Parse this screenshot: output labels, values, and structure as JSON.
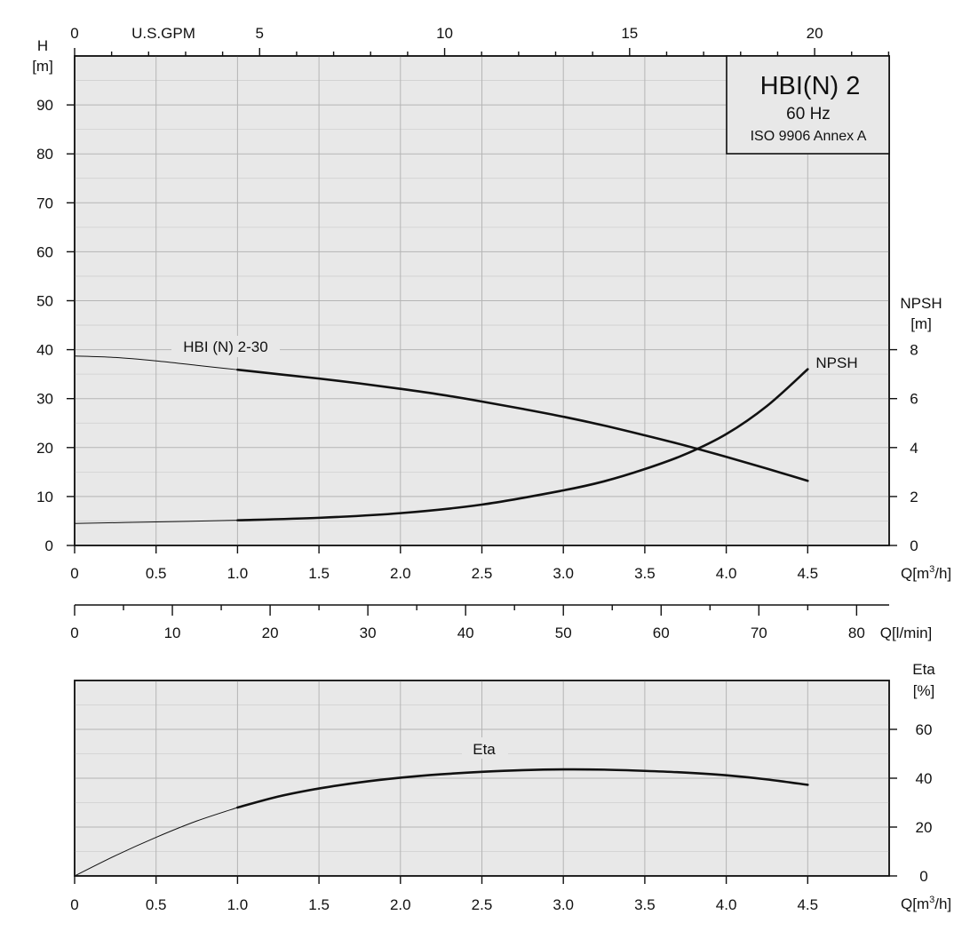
{
  "chart_data": [
    {
      "type": "line",
      "name": "performance",
      "title_box": {
        "line1": "HBI(N) 2",
        "line2": "60 Hz",
        "line3": "ISO 9906 Annex A"
      },
      "x_axis": {
        "label": "Q[m³/h]",
        "label_base": "Q[m",
        "label_sup": "3",
        "label_tail": "/h]",
        "range": [
          0,
          5.0
        ],
        "ticks": [
          "0",
          "0.5",
          "1.0",
          "1.5",
          "2.0",
          "2.5",
          "3.0",
          "3.5",
          "4.0",
          "4.5"
        ]
      },
      "top_axis": {
        "label": "U.S.GPM",
        "ticks": [
          "0",
          "5",
          "10",
          "15",
          "20"
        ],
        "tick_values": [
          0,
          5,
          10,
          15,
          20
        ]
      },
      "y_left": {
        "label_line1": "H",
        "label_line2": "[m]",
        "range": [
          0,
          100
        ],
        "ticks": [
          "0",
          "10",
          "20",
          "30",
          "40",
          "50",
          "60",
          "70",
          "80",
          "90"
        ]
      },
      "y_right": {
        "label_line1": "NPSH",
        "label_line2": "[m]",
        "range": [
          0,
          20
        ],
        "ticks": [
          "0",
          "2",
          "4",
          "6",
          "8"
        ]
      },
      "series": [
        {
          "name": "HBI (N) 2-30",
          "axis": "left",
          "x": [
            0,
            0.25,
            0.5,
            0.75,
            1.0,
            1.25,
            1.5,
            1.75,
            2.0,
            2.25,
            2.5,
            2.75,
            3.0,
            3.25,
            3.5,
            3.75,
            4.0,
            4.25,
            4.5
          ],
          "y": [
            38.7,
            38.4,
            37.7,
            36.8,
            35.9,
            35.0,
            34.1,
            33.1,
            32.0,
            30.8,
            29.4,
            27.9,
            26.3,
            24.5,
            22.5,
            20.4,
            18.1,
            15.7,
            13.2
          ]
        },
        {
          "name": "NPSH",
          "axis": "right",
          "x": [
            0,
            0.5,
            1.0,
            1.5,
            2.0,
            2.5,
            3.0,
            3.25,
            3.5,
            3.75,
            4.0,
            4.25,
            4.5
          ],
          "y": [
            0.9,
            0.96,
            1.03,
            1.13,
            1.32,
            1.67,
            2.25,
            2.62,
            3.12,
            3.73,
            4.55,
            5.7,
            7.2
          ]
        }
      ]
    },
    {
      "type": "line",
      "name": "efficiency",
      "x_axis": {
        "label": "Q[m³/h]",
        "label_base": "Q[m",
        "label_sup": "3",
        "label_tail": "/h]",
        "range": [
          0,
          5.0
        ],
        "ticks": [
          "0",
          "0.5",
          "1.0",
          "1.5",
          "2.0",
          "2.5",
          "3.0",
          "3.5",
          "4.0",
          "4.5"
        ]
      },
      "y_right": {
        "label_line1": "Eta",
        "label_line2": "[%]",
        "range": [
          0,
          80
        ],
        "ticks": [
          "0",
          "20",
          "40",
          "60"
        ]
      },
      "series": [
        {
          "name": "Eta",
          "axis": "right",
          "x": [
            0,
            0.25,
            0.5,
            0.75,
            1.0,
            1.25,
            1.5,
            1.75,
            2.0,
            2.25,
            2.5,
            2.75,
            3.0,
            3.25,
            3.5,
            3.75,
            4.0,
            4.25,
            4.5
          ],
          "y": [
            0,
            8.3,
            15.8,
            22.5,
            28.0,
            32.5,
            35.8,
            38.3,
            40.2,
            41.6,
            42.6,
            43.3,
            43.6,
            43.5,
            43.0,
            42.3,
            41.2,
            39.5,
            37.3
          ]
        }
      ]
    },
    {
      "type": "axis",
      "name": "flow-lmin",
      "label": "Q[l/min]",
      "range": [
        0,
        83.33
      ],
      "ticks": [
        "0",
        "10",
        "20",
        "30",
        "40",
        "50",
        "60",
        "70",
        "80"
      ],
      "tick_values": [
        0,
        10,
        20,
        30,
        40,
        50,
        60,
        70,
        80
      ]
    }
  ]
}
